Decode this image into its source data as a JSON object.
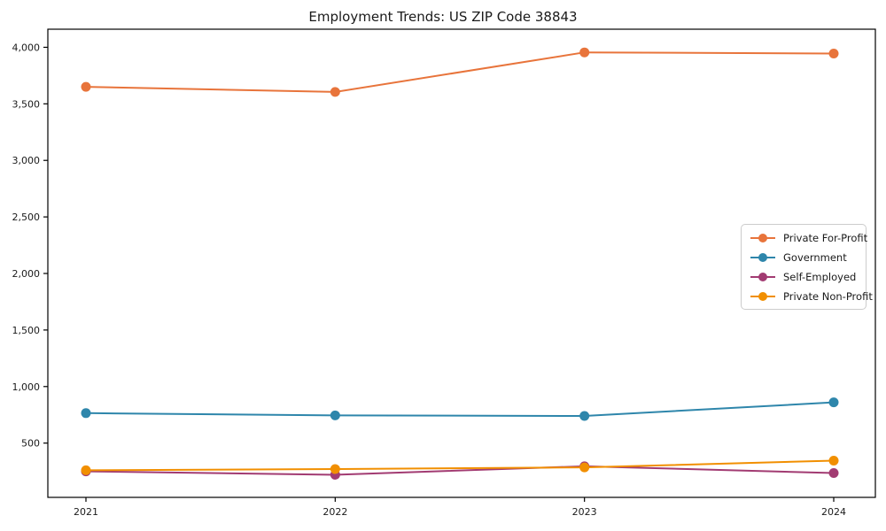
{
  "chart_data": {
    "type": "line",
    "title": "Employment Trends: US ZIP Code 38843",
    "xlabel": "",
    "ylabel": "",
    "grid": false,
    "x_labels": [
      "2021",
      "2022",
      "2023",
      "2024"
    ],
    "y_tick_labels": [
      "500",
      "1,000",
      "1,500",
      "2,000",
      "2,500",
      "3,000",
      "3,500",
      "4,000"
    ],
    "y_tick_values": [
      500,
      1000,
      1500,
      2000,
      2500,
      3000,
      3500,
      4000
    ],
    "ylim": [
      20,
      4160
    ],
    "legend_position": "center-right",
    "series": [
      {
        "name": "Private For-Profit",
        "color": "#E8743B",
        "values": [
          3650,
          3605,
          3955,
          3945
        ]
      },
      {
        "name": "Government",
        "color": "#2E86AB",
        "values": [
          765,
          745,
          740,
          860
        ]
      },
      {
        "name": "Self-Employed",
        "color": "#A23B72",
        "values": [
          250,
          220,
          295,
          235
        ]
      },
      {
        "name": "Private Non-Profit",
        "color": "#F18F01",
        "values": [
          260,
          270,
          285,
          345
        ]
      }
    ]
  }
}
